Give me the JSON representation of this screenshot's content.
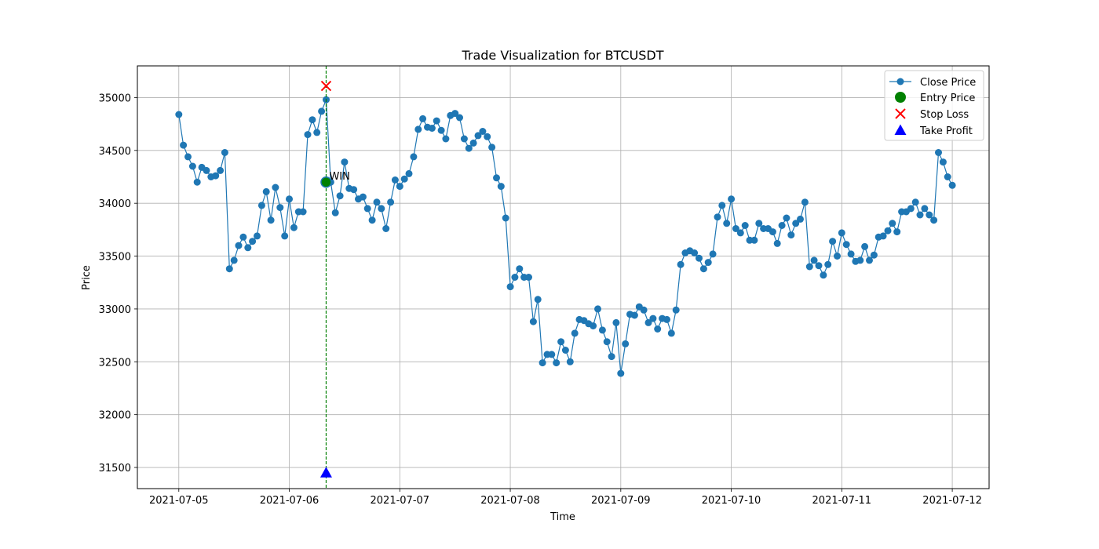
{
  "chart_data": {
    "type": "line",
    "title": "Trade Visualization for BTCUSDT",
    "xlabel": "Time",
    "ylabel": "Price",
    "x_ticks": [
      "2021-07-05",
      "2021-07-06",
      "2021-07-07",
      "2021-07-08",
      "2021-07-09",
      "2021-07-10",
      "2021-07-11",
      "2021-07-12"
    ],
    "y_ticks": [
      31500,
      32000,
      32500,
      33000,
      33500,
      34000,
      34500,
      35000
    ],
    "xlim": [
      "2021-07-04T15:00",
      "2021-07-12T08:00"
    ],
    "ylim": [
      31300,
      35300
    ],
    "grid": true,
    "legend_position": "top-right",
    "legend": [
      "Close Price",
      "Entry Price",
      "Stop Loss",
      "Take Profit"
    ],
    "series": [
      {
        "name": "Close Price",
        "color": "#1f77b4",
        "start": "2021-07-05T00:00",
        "interval_hours": 1,
        "values": [
          34840,
          34550,
          34440,
          34350,
          34200,
          34340,
          34310,
          34250,
          34260,
          34310,
          34480,
          33380,
          33460,
          33600,
          33680,
          33580,
          33640,
          33690,
          33980,
          34110,
          33840,
          34150,
          33960,
          33690,
          34040,
          33770,
          33920,
          33920,
          34650,
          34790,
          34670,
          34870,
          34980,
          34200,
          33910,
          34070,
          34390,
          34140,
          34130,
          34040,
          34060,
          33950,
          33840,
          34010,
          33950,
          33760,
          34010,
          34220,
          34160,
          34230,
          34280,
          34440,
          34700,
          34800,
          34720,
          34710,
          34780,
          34690,
          34610,
          34830,
          34850,
          34810,
          34610,
          34520,
          34570,
          34640,
          34680,
          34630,
          34530,
          34240,
          34160,
          33860,
          33210,
          33300,
          33380,
          33300,
          33300,
          32880,
          33090,
          32490,
          32570,
          32570,
          32490,
          32690,
          32610,
          32500,
          32770,
          32900,
          32890,
          32860,
          32840,
          33000,
          32800,
          32690,
          32550,
          32870,
          32390,
          32670,
          32950,
          32940,
          33020,
          32990,
          32870,
          32910,
          32810,
          32910,
          32900,
          32770,
          32990,
          33420,
          33530,
          33550,
          33530,
          33480,
          33380,
          33440,
          33520,
          33870,
          33980,
          33810,
          34040,
          33760,
          33720,
          33790,
          33650,
          33650,
          33810,
          33760,
          33760,
          33730,
          33620,
          33790,
          33860,
          33700,
          33810,
          33850,
          34010,
          33400,
          33460,
          33410,
          33320,
          33420,
          33640,
          33500,
          33720,
          33610,
          33520,
          33450,
          33460,
          33590,
          33460,
          33510,
          33680,
          33690,
          33740,
          33810,
          33730,
          33920,
          33920,
          33950,
          34010,
          33890,
          33950,
          33890,
          33840,
          34480,
          34390,
          34250,
          34170
        ]
      }
    ],
    "trade": {
      "time": "2021-07-06T08:00",
      "entry_price": 34200,
      "stop_loss": 35110,
      "take_profit": 31450,
      "entry_color": "#008000",
      "stop_color": "#ff0000",
      "take_color": "#0000ff",
      "vline_color": "#008000",
      "annotation": "WIN"
    }
  }
}
